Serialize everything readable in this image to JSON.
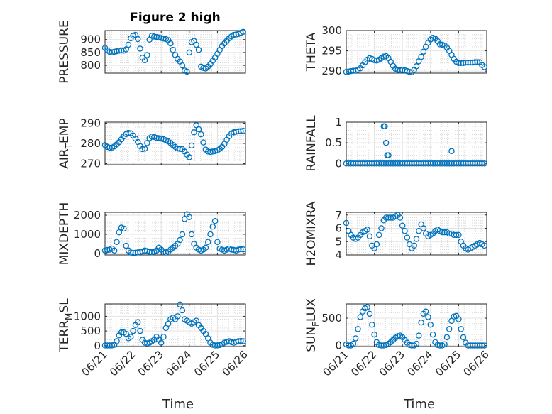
{
  "figure": {
    "title": "Figure 2 high"
  },
  "colors": {
    "marker": "#0072BD",
    "axis": "#262626",
    "grid": "#d9d9d9"
  },
  "x_axis": {
    "label": "Time",
    "tick_labels": [
      "06/21",
      "06/22",
      "06/23",
      "06/24",
      "06/25",
      "06/26"
    ]
  },
  "chart_data": [
    {
      "type": "scatter",
      "ylabel": "PRESSURE",
      "title": "Figure 2 high",
      "xlim": [
        0,
        5
      ],
      "ylim": [
        770,
        935
      ],
      "yticks": [
        800,
        850,
        900
      ],
      "ytick_labels": [
        "800",
        "850",
        "900"
      ],
      "grid": true,
      "x": [
        0.0,
        0.083,
        0.167,
        0.25,
        0.333,
        0.417,
        0.5,
        0.583,
        0.667,
        0.75,
        0.833,
        0.917,
        1.0,
        1.083,
        1.167,
        1.25,
        1.333,
        1.417,
        1.5,
        1.583,
        1.667,
        1.75,
        1.833,
        1.917,
        2.0,
        2.083,
        2.167,
        2.25,
        2.333,
        2.417,
        2.5,
        2.583,
        2.667,
        2.75,
        2.833,
        2.917,
        3.0,
        3.083,
        3.167,
        3.25,
        3.333,
        3.417,
        3.5,
        3.583,
        3.667,
        3.75,
        3.833,
        3.917,
        4.0,
        4.083,
        4.167,
        4.25,
        4.333,
        4.417,
        4.5,
        4.583,
        4.667,
        4.75,
        4.833,
        4.917
      ],
      "y": [
        868,
        858,
        852,
        851,
        853,
        855,
        857,
        858,
        857,
        862,
        880,
        905,
        915,
        918,
        902,
        865,
        830,
        820,
        840,
        900,
        915,
        912,
        910,
        908,
        906,
        904,
        902,
        898,
        885,
        860,
        840,
        825,
        815,
        800,
        780,
        776,
        850,
        890,
        895,
        880,
        860,
        795,
        790,
        788,
        795,
        805,
        818,
        830,
        845,
        860,
        875,
        885,
        895,
        905,
        912,
        918,
        920,
        922,
        926,
        930
      ]
    },
    {
      "type": "scatter",
      "ylabel": "THETA",
      "xlim": [
        0,
        5
      ],
      "ylim": [
        289.5,
        300
      ],
      "yticks": [
        290,
        295,
        300
      ],
      "ytick_labels": [
        "290",
        "295",
        "300"
      ],
      "grid": true,
      "x": [
        0.0,
        0.083,
        0.167,
        0.25,
        0.333,
        0.417,
        0.5,
        0.583,
        0.667,
        0.75,
        0.833,
        0.917,
        1.0,
        1.083,
        1.167,
        1.25,
        1.333,
        1.417,
        1.5,
        1.583,
        1.667,
        1.75,
        1.833,
        1.917,
        2.0,
        2.083,
        2.167,
        2.25,
        2.333,
        2.417,
        2.5,
        2.583,
        2.667,
        2.75,
        2.833,
        2.917,
        3.0,
        3.083,
        3.167,
        3.25,
        3.333,
        3.417,
        3.5,
        3.583,
        3.667,
        3.75,
        3.833,
        3.917,
        4.0,
        4.083,
        4.167,
        4.25,
        4.333,
        4.417,
        4.5,
        4.583,
        4.667,
        4.75,
        4.833,
        4.917
      ],
      "y": [
        289.8,
        289.9,
        290.0,
        290.1,
        290.1,
        290.3,
        290.7,
        291.4,
        292.2,
        292.8,
        293.2,
        293.0,
        292.7,
        292.6,
        292.8,
        293.2,
        293.6,
        293.7,
        293.2,
        292.3,
        291.3,
        290.6,
        290.3,
        290.2,
        290.3,
        290.2,
        290.0,
        289.8,
        289.7,
        290.3,
        291.2,
        292.4,
        293.5,
        294.8,
        296.0,
        297.0,
        297.8,
        298.2,
        298.0,
        297.4,
        296.6,
        296.5,
        296.3,
        295.8,
        295.0,
        294.0,
        293.0,
        292.3,
        292.0,
        292.0,
        292.0,
        292.1,
        292.1,
        292.1,
        292.1,
        292.2,
        292.2,
        292.2,
        291.5,
        291.0
      ]
    },
    {
      "type": "scatter",
      "ylabel": "AIR_TEMP",
      "xlim": [
        0,
        5
      ],
      "ylim": [
        269.5,
        290.5
      ],
      "yticks": [
        270,
        280,
        290
      ],
      "ytick_labels": [
        "270",
        "280",
        "290"
      ],
      "grid": true,
      "x": [
        0.0,
        0.083,
        0.167,
        0.25,
        0.333,
        0.417,
        0.5,
        0.583,
        0.667,
        0.75,
        0.833,
        0.917,
        1.0,
        1.083,
        1.167,
        1.25,
        1.333,
        1.417,
        1.5,
        1.583,
        1.667,
        1.75,
        1.833,
        1.917,
        2.0,
        2.083,
        2.167,
        2.25,
        2.333,
        2.417,
        2.5,
        2.583,
        2.667,
        2.75,
        2.833,
        2.917,
        3.0,
        3.083,
        3.167,
        3.25,
        3.333,
        3.417,
        3.5,
        3.583,
        3.667,
        3.75,
        3.833,
        3.917,
        4.0,
        4.083,
        4.167,
        4.25,
        4.333,
        4.417,
        4.5,
        4.583,
        4.667,
        4.75,
        4.833,
        4.917
      ],
      "y": [
        279.2,
        278.3,
        277.9,
        278.0,
        278.5,
        279.5,
        280.6,
        282.0,
        283.5,
        284.6,
        285.2,
        285.0,
        283.9,
        282.4,
        280.7,
        278.7,
        277.2,
        277.4,
        280.2,
        282.6,
        283.4,
        283.2,
        282.7,
        282.6,
        282.4,
        282.1,
        281.6,
        281.0,
        280.2,
        279.2,
        278.3,
        277.5,
        277.3,
        277.2,
        276.0,
        274.5,
        273.2,
        279.0,
        285.5,
        289.0,
        287.0,
        284.5,
        280.5,
        277.0,
        276.0,
        275.8,
        276.0,
        276.2,
        276.6,
        277.3,
        278.3,
        279.8,
        281.8,
        283.6,
        284.8,
        285.5,
        285.8,
        286.0,
        286.1,
        286.2
      ]
    },
    {
      "type": "scatter",
      "ylabel": "RAINFALL",
      "xlim": [
        0,
        5
      ],
      "ylim": [
        -0.03,
        1.0
      ],
      "yticks": [
        0,
        0.5,
        1
      ],
      "ytick_labels": [
        "0",
        "0.5",
        "1"
      ],
      "grid": true,
      "x": [
        0.0,
        0.083,
        0.167,
        0.25,
        0.333,
        0.417,
        0.5,
        0.583,
        0.667,
        0.75,
        0.833,
        0.917,
        1.0,
        1.083,
        1.167,
        1.25,
        1.333,
        1.417,
        1.5,
        1.583,
        1.667,
        1.75,
        1.833,
        1.917,
        2.0,
        2.083,
        2.167,
        2.25,
        2.333,
        2.417,
        2.5,
        2.583,
        2.667,
        2.75,
        2.833,
        2.917,
        3.0,
        3.083,
        3.167,
        3.25,
        3.333,
        3.417,
        3.5,
        3.583,
        3.667,
        3.75,
        3.833,
        3.917,
        4.0,
        4.083,
        4.167,
        4.25,
        4.333,
        4.417,
        4.5,
        4.583,
        4.667,
        4.75,
        4.833,
        4.917,
        1.333,
        1.375,
        1.417,
        1.458,
        1.5,
        3.75
      ],
      "y": [
        0,
        0,
        0,
        0,
        0,
        0,
        0,
        0,
        0,
        0,
        0,
        0,
        0,
        0,
        0,
        0,
        0,
        0,
        0,
        0,
        0,
        0,
        0,
        0,
        0,
        0,
        0,
        0,
        0,
        0,
        0,
        0,
        0,
        0,
        0,
        0,
        0,
        0,
        0,
        0,
        0,
        0,
        0,
        0,
        0,
        0,
        0,
        0,
        0,
        0,
        0,
        0,
        0,
        0,
        0,
        0,
        0,
        0,
        0,
        0,
        0.9,
        0.9,
        0.5,
        0.2,
        0.2,
        0.3
      ]
    },
    {
      "type": "scatter",
      "ylabel": "MIXDEPTH",
      "xlim": [
        0,
        5
      ],
      "ylim": [
        -80,
        2150
      ],
      "yticks": [
        0,
        1000,
        2000
      ],
      "ytick_labels": [
        "0",
        "1000",
        "2000"
      ],
      "grid": true,
      "x": [
        0.0,
        0.083,
        0.167,
        0.25,
        0.333,
        0.417,
        0.5,
        0.583,
        0.667,
        0.75,
        0.833,
        0.917,
        1.0,
        1.083,
        1.167,
        1.25,
        1.333,
        1.417,
        1.5,
        1.583,
        1.667,
        1.75,
        1.833,
        1.917,
        2.0,
        2.083,
        2.167,
        2.25,
        2.333,
        2.417,
        2.5,
        2.583,
        2.667,
        2.75,
        2.833,
        2.917,
        3.0,
        3.083,
        3.167,
        3.25,
        3.333,
        3.417,
        3.5,
        3.583,
        3.667,
        3.75,
        3.833,
        3.917,
        4.0,
        4.083,
        4.167,
        4.25,
        4.333,
        4.417,
        4.5,
        4.583,
        4.667,
        4.75,
        4.833,
        4.917
      ],
      "y": [
        150,
        180,
        200,
        250,
        150,
        600,
        1100,
        1350,
        1300,
        400,
        150,
        50,
        20,
        30,
        50,
        80,
        100,
        150,
        120,
        80,
        60,
        80,
        150,
        300,
        200,
        100,
        50,
        100,
        200,
        300,
        400,
        500,
        700,
        1000,
        1800,
        2050,
        1900,
        1000,
        500,
        300,
        200,
        150,
        200,
        300,
        600,
        1000,
        1400,
        1700,
        600,
        250,
        200,
        150,
        200,
        250,
        200,
        180,
        150,
        200,
        220,
        210
      ]
    },
    {
      "type": "scatter",
      "ylabel": "H2OMIXRA",
      "xlim": [
        0,
        5
      ],
      "ylim": [
        4,
        7.2
      ],
      "yticks": [
        4,
        5,
        6,
        7
      ],
      "ytick_labels": [
        "4",
        "5",
        "6",
        "7"
      ],
      "grid": true,
      "x": [
        0.0,
        0.083,
        0.167,
        0.25,
        0.333,
        0.417,
        0.5,
        0.583,
        0.667,
        0.75,
        0.833,
        0.917,
        1.0,
        1.083,
        1.167,
        1.25,
        1.333,
        1.417,
        1.5,
        1.583,
        1.667,
        1.75,
        1.833,
        1.917,
        2.0,
        2.083,
        2.167,
        2.25,
        2.333,
        2.417,
        2.5,
        2.583,
        2.667,
        2.75,
        2.833,
        2.917,
        3.0,
        3.083,
        3.167,
        3.25,
        3.333,
        3.417,
        3.5,
        3.583,
        3.667,
        3.75,
        3.833,
        3.917,
        4.0,
        4.083,
        4.167,
        4.25,
        4.333,
        4.417,
        4.5,
        4.583,
        4.667,
        4.75,
        4.833,
        4.917
      ],
      "y": [
        6.4,
        5.8,
        5.5,
        5.3,
        5.2,
        5.3,
        5.5,
        5.7,
        5.8,
        5.9,
        5.4,
        4.7,
        4.5,
        4.8,
        5.5,
        6.0,
        6.6,
        6.8,
        6.8,
        6.8,
        6.8,
        6.9,
        7.0,
        6.8,
        6.2,
        5.8,
        5.3,
        4.8,
        4.5,
        4.7,
        5.2,
        5.8,
        6.3,
        6.0,
        5.6,
        5.4,
        5.5,
        5.6,
        5.8,
        5.9,
        5.8,
        5.7,
        5.7,
        5.7,
        5.6,
        5.6,
        5.5,
        5.5,
        5.5,
        5.0,
        4.7,
        4.5,
        4.4,
        4.5,
        4.6,
        4.7,
        4.8,
        4.9,
        4.8,
        4.7
      ]
    },
    {
      "type": "scatter",
      "ylabel": "TERR_MSL",
      "xlim": [
        0,
        5
      ],
      "ylim": [
        -30,
        1420
      ],
      "yticks": [
        0,
        500,
        1000
      ],
      "ytick_labels": [
        "0",
        "500",
        "1000"
      ],
      "grid": true,
      "x": [
        0.0,
        0.083,
        0.167,
        0.25,
        0.333,
        0.417,
        0.5,
        0.583,
        0.667,
        0.75,
        0.833,
        0.917,
        1.0,
        1.083,
        1.167,
        1.25,
        1.333,
        1.417,
        1.5,
        1.583,
        1.667,
        1.75,
        1.833,
        1.917,
        2.0,
        2.083,
        2.167,
        2.25,
        2.333,
        2.417,
        2.5,
        2.583,
        2.667,
        2.75,
        2.833,
        2.917,
        3.0,
        3.083,
        3.167,
        3.25,
        3.333,
        3.417,
        3.5,
        3.583,
        3.667,
        3.75,
        3.833,
        3.917,
        4.0,
        4.083,
        4.167,
        4.25,
        4.333,
        4.417,
        4.5,
        4.583,
        4.667,
        4.75,
        4.833,
        4.917
      ],
      "y": [
        10,
        5,
        5,
        10,
        30,
        150,
        350,
        450,
        450,
        400,
        250,
        300,
        500,
        700,
        800,
        500,
        200,
        100,
        80,
        100,
        150,
        200,
        300,
        200,
        100,
        300,
        600,
        750,
        900,
        950,
        900,
        1000,
        1400,
        1200,
        900,
        850,
        800,
        750,
        800,
        850,
        700,
        600,
        500,
        400,
        250,
        100,
        30,
        5,
        10,
        20,
        50,
        100,
        130,
        150,
        120,
        100,
        130,
        150,
        160,
        150
      ]
    },
    {
      "type": "scatter",
      "ylabel": "SUN_FLUX",
      "xlim": [
        0,
        5
      ],
      "ylim": [
        -20,
        760
      ],
      "yticks": [
        0,
        500
      ],
      "ytick_labels": [
        "0",
        "500"
      ],
      "grid": true,
      "x": [
        0.0,
        0.083,
        0.167,
        0.25,
        0.333,
        0.417,
        0.5,
        0.583,
        0.667,
        0.75,
        0.833,
        0.917,
        1.0,
        1.083,
        1.167,
        1.25,
        1.333,
        1.417,
        1.5,
        1.583,
        1.667,
        1.75,
        1.833,
        1.917,
        2.0,
        2.083,
        2.167,
        2.25,
        2.333,
        2.417,
        2.5,
        2.583,
        2.667,
        2.75,
        2.833,
        2.917,
        3.0,
        3.083,
        3.167,
        3.25,
        3.333,
        3.417,
        3.5,
        3.583,
        3.667,
        3.75,
        3.833,
        3.917,
        4.0,
        4.083,
        4.167,
        4.25,
        4.333,
        4.417,
        4.5,
        4.583,
        4.667,
        4.75,
        4.833,
        4.917
      ],
      "y": [
        20,
        0,
        0,
        30,
        130,
        300,
        520,
        620,
        680,
        700,
        580,
        380,
        200,
        60,
        10,
        0,
        0,
        10,
        30,
        60,
        100,
        140,
        170,
        180,
        150,
        100,
        50,
        10,
        0,
        0,
        30,
        180,
        420,
        580,
        620,
        520,
        380,
        200,
        60,
        10,
        0,
        0,
        20,
        150,
        300,
        450,
        530,
        540,
        480,
        300,
        150,
        50,
        0,
        0,
        0,
        0,
        0,
        0,
        0,
        0
      ]
    }
  ]
}
